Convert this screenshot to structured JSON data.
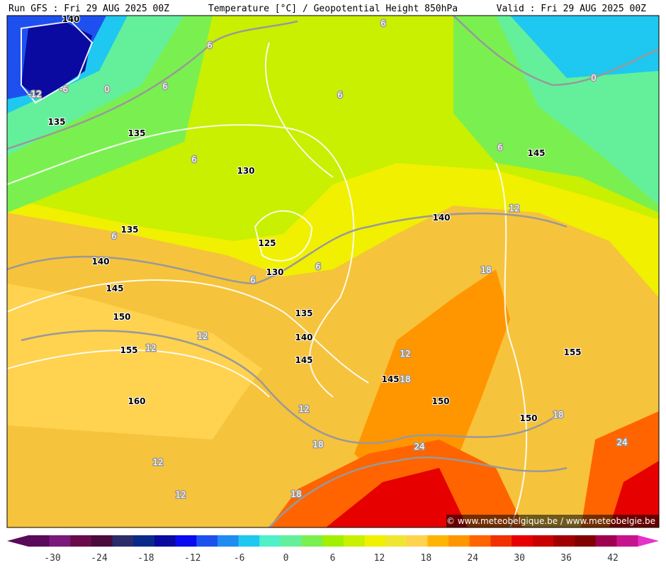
{
  "header": {
    "run": "Run GFS : Fri 29 AUG 2025 00Z",
    "title": "Temperature [°C] / Geopotential Height 850hPa",
    "valid": "Valid : Fri 29 AUG 2025 00Z"
  },
  "watermark": "© www.meteobelgique.be / www.meteobelgie.be",
  "contour_labels": {
    "height": [
      140,
      135,
      135,
      130,
      135,
      140,
      145,
      150,
      155,
      160,
      125,
      130,
      135,
      140,
      145,
      145,
      140,
      145,
      150,
      150,
      155
    ],
    "temperature": [
      -12,
      -6,
      0,
      6,
      6,
      6,
      6,
      6,
      6,
      6,
      6,
      6,
      0,
      12,
      18,
      12,
      12,
      12,
      18,
      12,
      18,
      12,
      12,
      18,
      24,
      18,
      24
    ]
  },
  "colorbar": {
    "ticks": [
      -30,
      -24,
      -18,
      -12,
      -6,
      0,
      6,
      12,
      18,
      24,
      30,
      36,
      42
    ],
    "colors": [
      "#5a0a5a",
      "#7b1a7b",
      "#6a0a4a",
      "#4a0a3a",
      "#2c2c6a",
      "#0a2a8a",
      "#0a0aa0",
      "#0a0af0",
      "#1e50f0",
      "#1e8cf0",
      "#1ec8f0",
      "#50f0c8",
      "#64f09a",
      "#7af050",
      "#a0f000",
      "#c8f000",
      "#f0f000",
      "#f0e632",
      "#ffd250",
      "#ffb400",
      "#ff9600",
      "#ff6400",
      "#f03200",
      "#e60000",
      "#c80000",
      "#a00000",
      "#820000",
      "#a00050",
      "#c8148c"
    ]
  }
}
